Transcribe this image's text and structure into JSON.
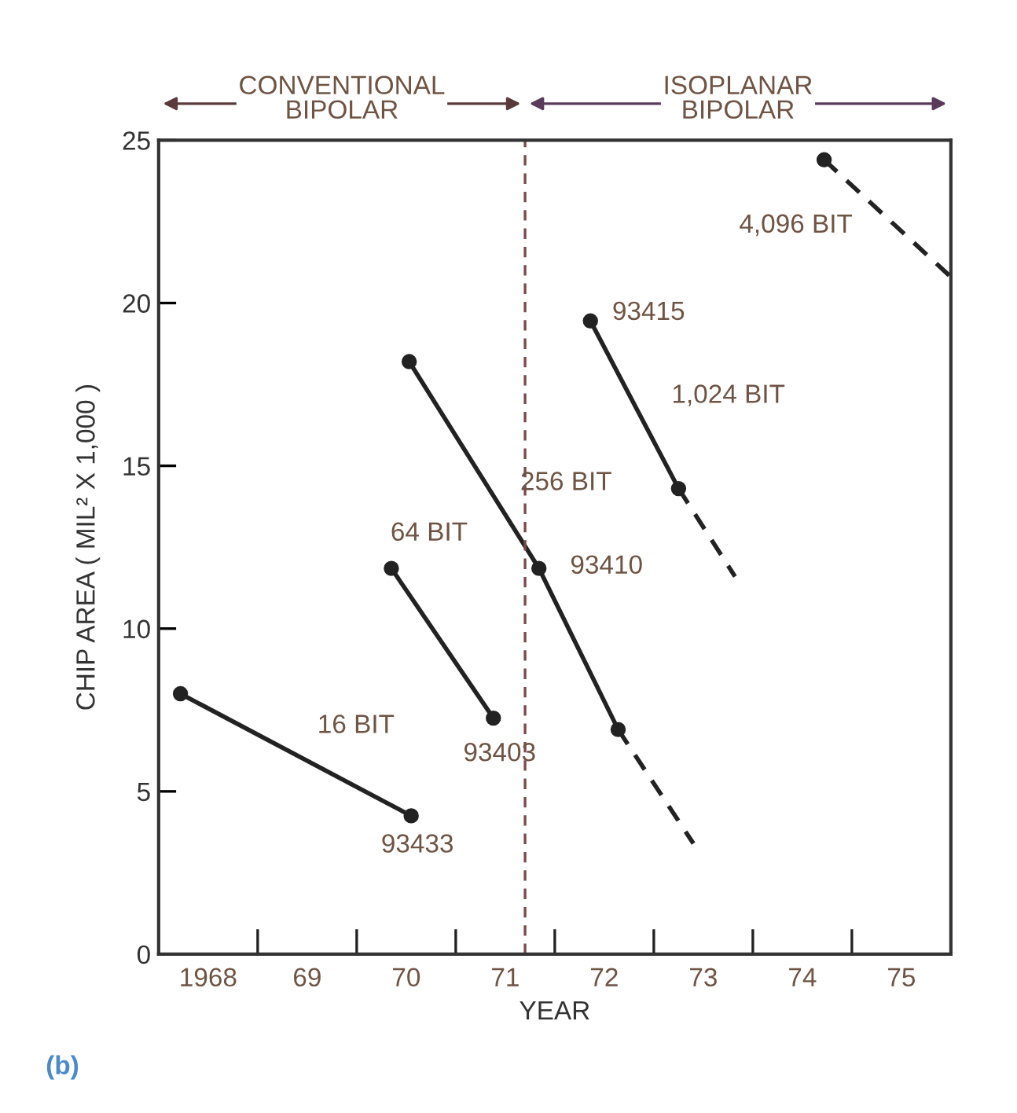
{
  "chart_data": {
    "type": "line",
    "xlabel": "YEAR",
    "ylabel": "CHIP AREA ( MIL² X 1,000 )",
    "xlim": [
      1967.5,
      1975.5
    ],
    "ylim": [
      0,
      25
    ],
    "xticks": [
      {
        "value": 1968,
        "label": "1968"
      },
      {
        "value": 1969,
        "label": "69"
      },
      {
        "value": 1970,
        "label": "70"
      },
      {
        "value": 1971,
        "label": "71"
      },
      {
        "value": 1972,
        "label": "72"
      },
      {
        "value": 1973,
        "label": "73"
      },
      {
        "value": 1974,
        "label": "74"
      },
      {
        "value": 1975,
        "label": "75"
      }
    ],
    "yticks": [
      0,
      5,
      10,
      15,
      20,
      25
    ],
    "grid": false,
    "legend": false,
    "series": [
      {
        "color": "#222222",
        "x": [
          1967.72,
          1970.05
        ],
        "values": [
          8.0,
          4.25
        ],
        "marker": "circle",
        "line_style": "solid"
      },
      {
        "color": "#222222",
        "x": [
          1969.85,
          1970.88
        ],
        "values": [
          11.85,
          7.25
        ],
        "marker": "circle",
        "line_style": "solid"
      },
      {
        "color": "#222222",
        "x": [
          1970.03,
          1971.34,
          1972.14
        ],
        "values": [
          18.2,
          11.85,
          6.9
        ],
        "marker": "circle",
        "line_style": "solid"
      },
      {
        "color": "#222222",
        "x": [
          1972.14,
          1972.9
        ],
        "values": [
          6.9,
          3.4
        ],
        "marker": "none",
        "line_style": "dashed"
      },
      {
        "color": "#222222",
        "x": [
          1971.86,
          1972.75
        ],
        "values": [
          19.45,
          14.3
        ],
        "marker": "circle",
        "line_style": "solid"
      },
      {
        "color": "#222222",
        "x": [
          1972.75,
          1973.32
        ],
        "values": [
          14.3,
          11.6
        ],
        "marker": "none",
        "line_style": "dashed"
      },
      {
        "color": "#222222",
        "x": [
          1974.22
        ],
        "values": [
          24.4
        ],
        "marker": "circle",
        "line_style": "solid"
      },
      {
        "color": "#222222",
        "x": [
          1974.22,
          1975.5
        ],
        "values": [
          24.4,
          20.8
        ],
        "marker": "none",
        "line_style": "dashed"
      }
    ],
    "ref_lines": [
      {
        "axis": "x",
        "value": 1971.2,
        "color": "#7a4a4a",
        "line_style": "dashed"
      }
    ],
    "annotations": [
      {
        "text": "16 BIT",
        "x": 1969.0,
        "y": 5.94
      },
      {
        "text": "93433",
        "x": 1970.05,
        "y": 4.25
      },
      {
        "text": "64 BIT",
        "x": 1969.85,
        "y": 11.85
      },
      {
        "text": "93403",
        "x": 1970.88,
        "y": 7.25
      },
      {
        "text": "256 BIT",
        "x": 1970.9,
        "y": 13.98
      },
      {
        "text": "93410",
        "x": 1971.34,
        "y": 11.85
      },
      {
        "text": "93415",
        "x": 1971.86,
        "y": 19.45
      },
      {
        "text": "1,024 BIT",
        "x": 1972.3,
        "y": 16.9
      },
      {
        "text": "4,096 BIT",
        "x": 1974.22,
        "y": 24.4
      },
      "CONVENTIONAL\nBIPOLAR",
      "ISOPLANAR\nBIPOLAR",
      "(b)"
    ]
  }
}
